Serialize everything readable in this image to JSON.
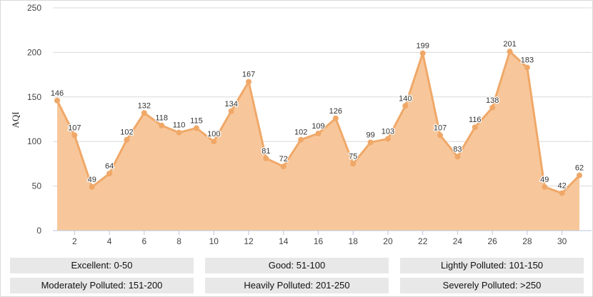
{
  "chart_data": {
    "type": "area",
    "ylabel": "AQI",
    "xlabel": "",
    "title": "",
    "ylim": [
      0,
      250
    ],
    "yticks": [
      0,
      50,
      100,
      150,
      200,
      250
    ],
    "xlim": [
      1,
      31
    ],
    "xticks": [
      2,
      4,
      6,
      8,
      10,
      12,
      14,
      16,
      18,
      20,
      22,
      24,
      26,
      28,
      30
    ],
    "x": [
      1,
      2,
      3,
      4,
      5,
      6,
      7,
      8,
      9,
      10,
      11,
      12,
      13,
      14,
      15,
      16,
      17,
      18,
      19,
      20,
      21,
      22,
      23,
      24,
      25,
      26,
      27,
      28,
      29,
      30,
      31
    ],
    "values": [
      146,
      107,
      49,
      64,
      102,
      132,
      118,
      110,
      115,
      100,
      134,
      167,
      81,
      72,
      102,
      109,
      126,
      75,
      99,
      103,
      140,
      199,
      107,
      83,
      116,
      138,
      201,
      183,
      49,
      42,
      62
    ],
    "grid": "horizontal",
    "colors": {
      "line": "#f0a868",
      "fill": "#f7c79b",
      "point": "#f0a868",
      "grid": "#d8d8d8"
    }
  },
  "legend": {
    "row1": [
      "Excellent: 0-50",
      "Good: 51-100",
      "Lightly Polluted: 101-150"
    ],
    "row2": [
      "Moderately Polluted: 151-200",
      "Heavily Polluted: 201-250",
      "Severely Polluted: >250"
    ]
  }
}
